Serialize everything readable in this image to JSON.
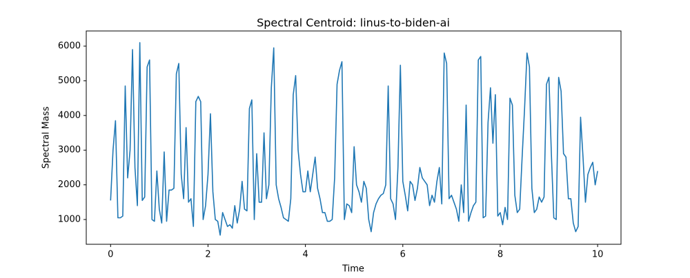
{
  "chart_data": {
    "type": "line",
    "title": "Spectral Centroid: linus-to-biden-ai",
    "x_label": "Time",
    "y_label": "Spectral Mass",
    "x": [
      0,
      0.05,
      0.1,
      0.15,
      0.2,
      0.25,
      0.3,
      0.35,
      0.4,
      0.45,
      0.5,
      0.55,
      0.6,
      0.65,
      0.7,
      0.75,
      0.8,
      0.85,
      0.9,
      0.95,
      1,
      1.05,
      1.1,
      1.15,
      1.2,
      1.25,
      1.3,
      1.35,
      1.4,
      1.45,
      1.5,
      1.55,
      1.6,
      1.65,
      1.7,
      1.75,
      1.8,
      1.85,
      1.9,
      1.95,
      2,
      2.05,
      2.1,
      2.15,
      2.2,
      2.25,
      2.3,
      2.35,
      2.4,
      2.45,
      2.5,
      2.55,
      2.6,
      2.65,
      2.7,
      2.75,
      2.8,
      2.85,
      2.9,
      2.95,
      3,
      3.05,
      3.1,
      3.15,
      3.2,
      3.25,
      3.3,
      3.35,
      3.4,
      3.45,
      3.5,
      3.55,
      3.6,
      3.65,
      3.7,
      3.75,
      3.8,
      3.85,
      3.9,
      3.95,
      4,
      4.05,
      4.1,
      4.15,
      4.2,
      4.25,
      4.3,
      4.35,
      4.4,
      4.45,
      4.5,
      4.55,
      4.6,
      4.65,
      4.7,
      4.75,
      4.8,
      4.85,
      4.9,
      4.95,
      5,
      5.05,
      5.1,
      5.15,
      5.2,
      5.25,
      5.3,
      5.35,
      5.4,
      5.45,
      5.5,
      5.55,
      5.6,
      5.65,
      5.7,
      5.75,
      5.8,
      5.85,
      5.9,
      5.95,
      6,
      6.05,
      6.1,
      6.15,
      6.2,
      6.25,
      6.3,
      6.35,
      6.4,
      6.45,
      6.5,
      6.55,
      6.6,
      6.65,
      6.7,
      6.75,
      6.8,
      6.85,
      6.9,
      6.95,
      7,
      7.05,
      7.1,
      7.15,
      7.2,
      7.25,
      7.3,
      7.35,
      7.4,
      7.45,
      7.5,
      7.55,
      7.6,
      7.65,
      7.7,
      7.75,
      7.8,
      7.85,
      7.9,
      7.95,
      8,
      8.05,
      8.1,
      8.15,
      8.2,
      8.25,
      8.3,
      8.35,
      8.4,
      8.45,
      8.5,
      8.55,
      8.6,
      8.65,
      8.7,
      8.75,
      8.8,
      8.85,
      8.9,
      8.95,
      9,
      9.05,
      9.1,
      9.15,
      9.2,
      9.25,
      9.3,
      9.35,
      9.4,
      9.45,
      9.5,
      9.55,
      9.6,
      9.65,
      9.7,
      9.75,
      9.8,
      9.85,
      9.9,
      9.95,
      10
    ],
    "series": [
      {
        "color": "#1f77b4",
        "values": [
          1550,
          3000,
          3850,
          1050,
          1050,
          1100,
          4850,
          2200,
          3000,
          5900,
          2500,
          1400,
          6100,
          1550,
          1650,
          5400,
          5600,
          1000,
          950,
          2400,
          1300,
          900,
          2950,
          950,
          1850,
          1850,
          1900,
          5200,
          5500,
          2300,
          1600,
          3650,
          1500,
          1600,
          800,
          4400,
          4550,
          4400,
          1000,
          1400,
          2300,
          4050,
          1800,
          1000,
          950,
          550,
          1200,
          1000,
          800,
          850,
          750,
          1400,
          900,
          1300,
          2100,
          1300,
          1250,
          4200,
          4450,
          1000,
          2900,
          1500,
          1500,
          3500,
          1600,
          2000,
          4800,
          5950,
          2000,
          1600,
          1350,
          1050,
          1000,
          950,
          1600,
          4600,
          5150,
          3000,
          2300,
          1800,
          1800,
          2400,
          1800,
          2300,
          2800,
          1900,
          1600,
          1200,
          1200,
          950,
          950,
          1000,
          2200,
          4900,
          5300,
          5550,
          1000,
          1450,
          1400,
          1200,
          3100,
          2000,
          1800,
          1500,
          2100,
          1900,
          1000,
          650,
          1200,
          1450,
          1600,
          1700,
          1750,
          2000,
          4850,
          1600,
          1450,
          1000,
          2500,
          5450,
          2100,
          1700,
          1250,
          2100,
          2000,
          1550,
          1900,
          2500,
          2200,
          2100,
          2000,
          1400,
          1700,
          1500,
          2100,
          2500,
          1450,
          5800,
          5500,
          1600,
          1700,
          1500,
          1300,
          950,
          2000,
          1200,
          4300,
          950,
          1200,
          1400,
          1500,
          5600,
          5700,
          1050,
          1100,
          3800,
          4800,
          3200,
          4600,
          1100,
          1200,
          850,
          1350,
          1000,
          4500,
          4300,
          1700,
          1200,
          1300,
          2800,
          4200,
          5800,
          5400,
          1900,
          1200,
          1300,
          1650,
          1500,
          1650,
          4900,
          5100,
          2900,
          1050,
          1000,
          5100,
          4700,
          2900,
          2800,
          1600,
          1600,
          900,
          650,
          800,
          3950,
          2800,
          1500,
          2300,
          2500,
          2650,
          2000,
          2400
        ]
      }
    ],
    "xlim": [
      -0.5,
      10.48
    ],
    "ylim": [
      286,
      6437
    ],
    "xticks": [
      0,
      2,
      4,
      6,
      8,
      10
    ],
    "yticks": [
      1000,
      2000,
      3000,
      4000,
      5000,
      6000
    ],
    "grid": false
  }
}
